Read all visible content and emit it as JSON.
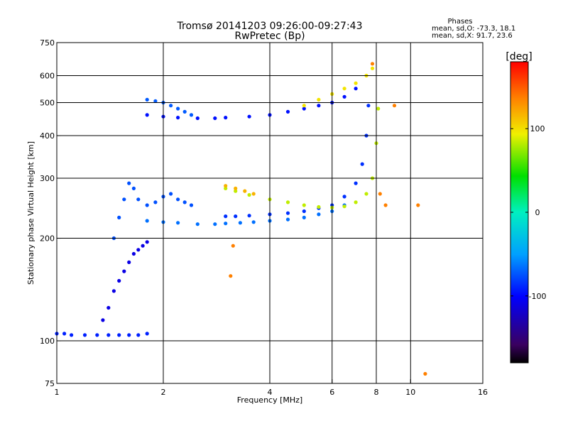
{
  "chart_data": {
    "type": "scatter",
    "title": "Tromsø 20141203 09:26:00-09:27:43",
    "subtitle": "RwPretec (Bp)",
    "info": {
      "heading": "Phases",
      "line_o": "mean, sd,O: -73.3, 18.1",
      "line_x": "mean, sd,X:  91.7, 23.6"
    },
    "xlabel": "Frequency [MHz]",
    "ylabel": "Stationary phase Virtual Height [km]",
    "x_scale": "log",
    "y_scale": "log",
    "xlim": [
      1,
      16
    ],
    "ylim": [
      75,
      750
    ],
    "x_ticks": [
      "1",
      "2",
      "4",
      "6",
      "8",
      "10",
      "16"
    ],
    "y_ticks": [
      "75",
      "100",
      "200",
      "300",
      "400",
      "500",
      "600",
      "750"
    ],
    "grid": true,
    "colorbar": {
      "label": "[deg]",
      "range": [
        -180,
        180
      ],
      "ticks": [
        "100",
        "0",
        "-100"
      ],
      "colormap": "rainbow"
    },
    "colors": {
      "o_trace_low": "#1060e0",
      "o_trace_mid": "#30a8f0",
      "x_trace": "#e8e040",
      "x_trace_warm": "#f08020"
    },
    "series": [
      {
        "phase": -90,
        "x": [
          1.0,
          1.05,
          1.1,
          1.2,
          1.3,
          1.4,
          1.5,
          1.6,
          1.7,
          1.8
        ],
        "y": [
          105,
          105,
          104,
          104,
          104,
          104,
          104,
          104,
          104,
          105
        ]
      },
      {
        "phase": -110,
        "x": [
          1.35,
          1.4,
          1.45,
          1.5,
          1.55,
          1.6,
          1.65,
          1.7,
          1.75,
          1.8
        ],
        "y": [
          115,
          125,
          140,
          150,
          160,
          170,
          180,
          185,
          190,
          195
        ]
      },
      {
        "phase": -75,
        "x": [
          1.45,
          1.5,
          1.55,
          1.6,
          1.65,
          1.7,
          1.8,
          1.9,
          2.0,
          2.1,
          2.2,
          2.3,
          2.4
        ],
        "y": [
          200,
          230,
          260,
          290,
          280,
          260,
          250,
          255,
          265,
          270,
          260,
          255,
          250
        ]
      },
      {
        "phase": -65,
        "x": [
          1.8,
          2.0,
          2.2,
          2.5,
          2.8,
          3.0,
          3.3,
          3.6,
          4.0,
          4.5,
          5.0,
          5.5,
          6.0,
          6.5
        ],
        "y": [
          225,
          223,
          222,
          220,
          220,
          221,
          222,
          223,
          225,
          227,
          230,
          235,
          240,
          250
        ]
      },
      {
        "phase": -85,
        "x": [
          3.0,
          3.2,
          3.5,
          4.0,
          4.5,
          5.0,
          5.5,
          6.0,
          6.5,
          7.0,
          7.3,
          7.5,
          7.6
        ],
        "y": [
          232,
          232,
          233,
          235,
          237,
          240,
          245,
          250,
          265,
          290,
          330,
          400,
          490
        ]
      },
      {
        "phase": -95,
        "x": [
          1.8,
          2.0,
          2.2,
          2.5,
          2.8,
          3.0,
          3.5,
          4.0,
          4.5,
          5.0,
          5.5,
          6.0,
          6.5,
          7.0
        ],
        "y": [
          460,
          455,
          452,
          450,
          450,
          452,
          455,
          460,
          470,
          480,
          490,
          500,
          520,
          550
        ]
      },
      {
        "phase": -72,
        "x": [
          1.8,
          1.9,
          2.0,
          2.1,
          2.2,
          2.3,
          2.4
        ],
        "y": [
          510,
          505,
          500,
          490,
          480,
          470,
          460
        ]
      },
      {
        "phase": 85,
        "x": [
          3.0,
          3.2,
          3.5,
          4.0,
          4.5,
          5.0,
          5.5,
          6.0,
          6.5,
          7.0,
          7.5,
          7.8,
          8.0,
          8.1
        ],
        "y": [
          280,
          275,
          268,
          260,
          255,
          250,
          247,
          246,
          248,
          255,
          270,
          300,
          380,
          480
        ]
      },
      {
        "phase": 120,
        "x": [
          3.0,
          3.2,
          3.4,
          3.6
        ],
        "y": [
          285,
          280,
          275,
          270
        ]
      },
      {
        "phase": 100,
        "x": [
          5.0,
          5.5,
          6.0,
          6.5,
          7.0,
          7.5,
          7.8
        ],
        "y": [
          490,
          510,
          530,
          550,
          570,
          600,
          630
        ]
      },
      {
        "phase": 140,
        "x": [
          3.1,
          3.15,
          7.8,
          8.2,
          8.5,
          9.0,
          10.5,
          11.0
        ],
        "y": [
          155,
          190,
          650,
          270,
          250,
          490,
          250,
          80
        ]
      }
    ]
  }
}
